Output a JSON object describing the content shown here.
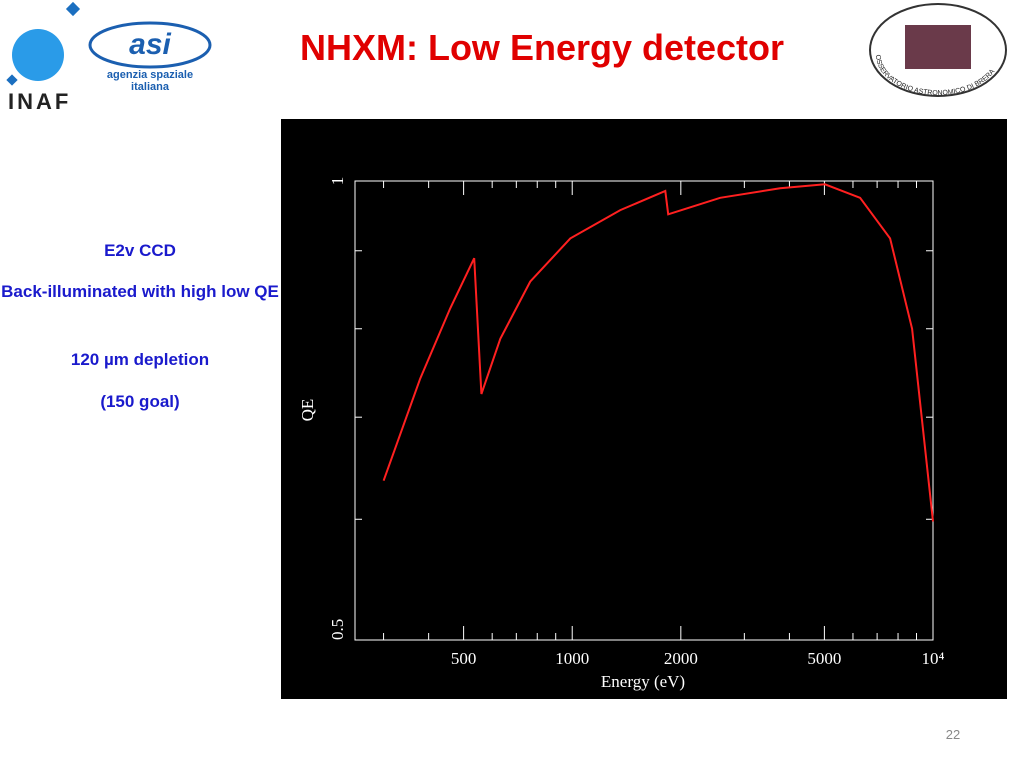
{
  "slide": {
    "title": "NHXM: Low Energy detector",
    "notes": [
      "E2v CCD",
      "Back-illuminated with high low QE",
      "120 µm depletion",
      "(150 goal)"
    ],
    "logo_inaf": "INAF",
    "logo_asi": [
      "agenzia spaziale",
      "italiana"
    ],
    "logo_brera": "OSSERVATORIO ASTRONOMICO DI BRERA",
    "page_number": "22"
  },
  "chart_data": {
    "type": "line",
    "xlabel": "Energy (eV)",
    "ylabel": "QE",
    "x": [
      300,
      379,
      459,
      535,
      560,
      632,
      765,
      988,
      1359,
      1811,
      1845,
      2572,
      3768,
      5016,
      6281,
      7603,
      8750,
      10000
    ],
    "values": [
      0.636,
      0.742,
      0.825,
      0.89,
      0.725,
      0.788,
      0.859,
      0.917,
      0.957,
      0.985,
      0.951,
      0.975,
      0.989,
      0.995,
      0.975,
      0.917,
      0.8,
      0.598
    ],
    "color": "#ff2020",
    "xlog": true,
    "ylog": true,
    "xlim": [
      250,
      10000
    ],
    "ylim": [
      0.5,
      1
    ],
    "xticks": [
      500,
      1000,
      2000,
      5000,
      {
        "value": 10000,
        "label": "10⁴"
      }
    ],
    "xminor": [
      300,
      400,
      600,
      700,
      800,
      900,
      3000,
      4000,
      6000,
      7000,
      8000,
      9000
    ],
    "yticks": [
      0.5,
      1
    ],
    "yminor": [
      0.6,
      0.7,
      0.8,
      0.9
    ]
  }
}
